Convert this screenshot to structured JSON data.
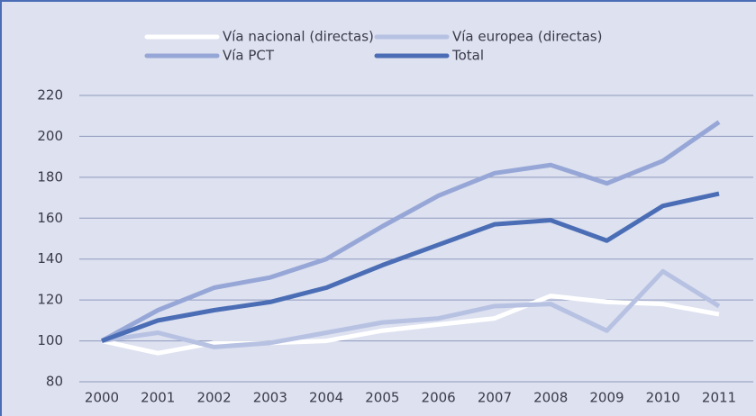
{
  "chart_data": {
    "type": "line",
    "categories": [
      "2000",
      "2001",
      "2002",
      "2003",
      "2004",
      "2005",
      "2006",
      "2007",
      "2008",
      "2009",
      "2010",
      "2011"
    ],
    "series": [
      {
        "name": "Vía nacional (directas)",
        "color": "#ffffff",
        "values": [
          100,
          94,
          99,
          99,
          100,
          105,
          108,
          111,
          122,
          119,
          118,
          113
        ]
      },
      {
        "name": "Vía europea (directas)",
        "color": "#b7c1e2",
        "values": [
          100,
          104,
          97,
          99,
          104,
          109,
          111,
          117,
          118,
          105,
          134,
          117
        ]
      },
      {
        "name": "Vía PCT",
        "color": "#96a6d6",
        "values": [
          100,
          115,
          126,
          131,
          140,
          156,
          171,
          182,
          186,
          177,
          188,
          207
        ]
      },
      {
        "name": "Total",
        "color": "#4a6db5",
        "values": [
          100,
          110,
          115,
          119,
          126,
          137,
          147,
          157,
          159,
          149,
          166,
          172
        ]
      }
    ],
    "ylim": [
      80,
      220
    ],
    "yticks": [
      80,
      100,
      120,
      140,
      160,
      180,
      200,
      220
    ],
    "grid": true
  }
}
